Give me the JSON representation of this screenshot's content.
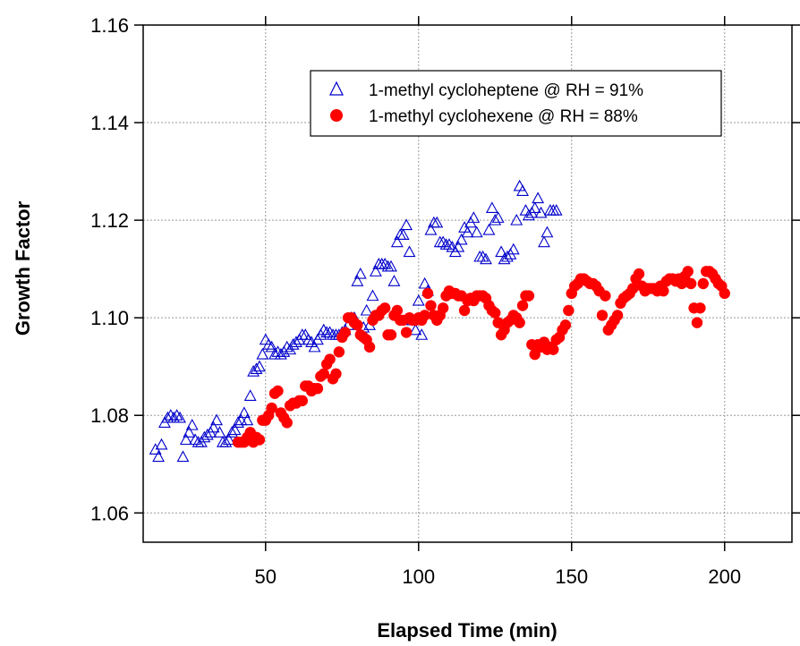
{
  "chart_data": {
    "type": "scatter",
    "xlabel": "Elapsed Time (min)",
    "ylabel": "Growth Factor",
    "xlim": [
      10,
      222
    ],
    "ylim": [
      1.054,
      1.16
    ],
    "xticks": [
      50,
      100,
      150,
      200
    ],
    "yticks": [
      1.06,
      1.08,
      1.1,
      1.12,
      1.14,
      1.16
    ],
    "ytick_labels": [
      "1.06",
      "1.08",
      "1.10",
      "1.12",
      "1.14",
      "1.16"
    ],
    "grid": true,
    "legend_position": "top-right",
    "series": [
      {
        "name": "1-methyl cycloheptene @ RH = 91%",
        "marker": "open-triangle",
        "color": "#0000cc",
        "points": [
          [
            14,
            1.073
          ],
          [
            15,
            1.0715
          ],
          [
            16,
            1.074
          ],
          [
            17,
            1.0785
          ],
          [
            18,
            1.0795
          ],
          [
            19,
            1.08
          ],
          [
            20,
            1.0795
          ],
          [
            21,
            1.08
          ],
          [
            22,
            1.0795
          ],
          [
            23,
            1.0715
          ],
          [
            24,
            1.075
          ],
          [
            25,
            1.0765
          ],
          [
            26,
            1.078
          ],
          [
            27,
            1.075
          ],
          [
            28,
            1.0745
          ],
          [
            29,
            1.0745
          ],
          [
            30,
            1.0755
          ],
          [
            31,
            1.076
          ],
          [
            32,
            1.0765
          ],
          [
            33,
            1.0775
          ],
          [
            34,
            1.079
          ],
          [
            35,
            1.0765
          ],
          [
            36,
            1.0745
          ],
          [
            37,
            1.0745
          ],
          [
            38,
            1.075
          ],
          [
            39,
            1.0765
          ],
          [
            40,
            1.077
          ],
          [
            41,
            1.0785
          ],
          [
            42,
            1.079
          ],
          [
            43,
            1.0805
          ],
          [
            44,
            1.079
          ],
          [
            45,
            1.084
          ],
          [
            46,
            1.089
          ],
          [
            47,
            1.0895
          ],
          [
            48,
            1.09
          ],
          [
            49,
            1.0925
          ],
          [
            50,
            1.0955
          ],
          [
            51,
            1.0945
          ],
          [
            52,
            1.094
          ],
          [
            53,
            1.0925
          ],
          [
            54,
            1.093
          ],
          [
            55,
            1.0925
          ],
          [
            56,
            1.093
          ],
          [
            57,
            1.094
          ],
          [
            58,
            1.0935
          ],
          [
            59,
            1.0945
          ],
          [
            60,
            1.095
          ],
          [
            61,
            1.0955
          ],
          [
            62,
            1.0965
          ],
          [
            63,
            1.0965
          ],
          [
            64,
            1.0955
          ],
          [
            65,
            1.095
          ],
          [
            66,
            1.094
          ],
          [
            67,
            1.0955
          ],
          [
            68,
            1.0965
          ],
          [
            69,
            1.0975
          ],
          [
            70,
            1.097
          ],
          [
            71,
            1.097
          ],
          [
            72,
            1.0965
          ],
          [
            73,
            1.0965
          ],
          [
            74,
            1.0965
          ],
          [
            75,
            1.097
          ],
          [
            76,
            1.0975
          ],
          [
            77,
            1.0985
          ],
          [
            78,
            1.1
          ],
          [
            79,
            1.1
          ],
          [
            80,
            1.1075
          ],
          [
            81,
            1.109
          ],
          [
            82,
            1.098
          ],
          [
            83,
            1.1015
          ],
          [
            84,
            1.0985
          ],
          [
            85,
            1.1045
          ],
          [
            86,
            1.1095
          ],
          [
            87,
            1.111
          ],
          [
            88,
            1.111
          ],
          [
            89,
            1.111
          ],
          [
            90,
            1.1105
          ],
          [
            91,
            1.1105
          ],
          [
            92,
            1.1075
          ],
          [
            93,
            1.1155
          ],
          [
            94,
            1.117
          ],
          [
            95,
            1.117
          ],
          [
            96,
            1.119
          ],
          [
            97,
            1.1135
          ],
          [
            98,
            1.0995
          ],
          [
            99,
            1.0975
          ],
          [
            100,
            1.1035
          ],
          [
            101,
            1.0965
          ],
          [
            102,
            1.107
          ],
          [
            103,
            1.1055
          ],
          [
            104,
            1.118
          ],
          [
            105,
            1.1195
          ],
          [
            106,
            1.1195
          ],
          [
            107,
            1.1155
          ],
          [
            108,
            1.1155
          ],
          [
            109,
            1.115
          ],
          [
            110,
            1.115
          ],
          [
            111,
            1.1145
          ],
          [
            112,
            1.1135
          ],
          [
            113,
            1.1145
          ],
          [
            114,
            1.116
          ],
          [
            115,
            1.1185
          ],
          [
            116,
            1.1175
          ],
          [
            117,
            1.1195
          ],
          [
            118,
            1.1205
          ],
          [
            119,
            1.1175
          ],
          [
            120,
            1.1125
          ],
          [
            121,
            1.1125
          ],
          [
            122,
            1.112
          ],
          [
            123,
            1.118
          ],
          [
            124,
            1.1225
          ],
          [
            125,
            1.12
          ],
          [
            126,
            1.1205
          ],
          [
            127,
            1.1135
          ],
          [
            128,
            1.112
          ],
          [
            129,
            1.1125
          ],
          [
            130,
            1.113
          ],
          [
            131,
            1.114
          ],
          [
            132,
            1.12
          ],
          [
            133,
            1.127
          ],
          [
            134,
            1.126
          ],
          [
            135,
            1.122
          ],
          [
            136,
            1.121
          ],
          [
            137,
            1.1215
          ],
          [
            138,
            1.1225
          ],
          [
            139,
            1.1245
          ],
          [
            140,
            1.1215
          ],
          [
            141,
            1.1155
          ],
          [
            142,
            1.1175
          ],
          [
            143,
            1.122
          ],
          [
            144,
            1.122
          ],
          [
            145,
            1.122
          ]
        ]
      },
      {
        "name": "1-methyl cyclohexene @ RH = 88%",
        "marker": "filled-circle",
        "color": "#ff0000",
        "points": [
          [
            41,
            1.0745
          ],
          [
            42,
            1.0745
          ],
          [
            43,
            1.0745
          ],
          [
            44,
            1.0755
          ],
          [
            45,
            1.0765
          ],
          [
            46,
            1.0745
          ],
          [
            47,
            1.0755
          ],
          [
            48,
            1.075
          ],
          [
            49,
            1.079
          ],
          [
            50,
            1.079
          ],
          [
            51,
            1.08
          ],
          [
            52,
            1.0815
          ],
          [
            53,
            1.0845
          ],
          [
            54,
            1.085
          ],
          [
            55,
            1.0805
          ],
          [
            56,
            1.0795
          ],
          [
            57,
            1.0785
          ],
          [
            58,
            1.082
          ],
          [
            59,
            1.0825
          ],
          [
            60,
            1.0825
          ],
          [
            61,
            1.083
          ],
          [
            62,
            1.083
          ],
          [
            63,
            1.086
          ],
          [
            64,
            1.086
          ],
          [
            65,
            1.085
          ],
          [
            66,
            1.0855
          ],
          [
            67,
            1.0855
          ],
          [
            68,
            1.088
          ],
          [
            69,
            1.0885
          ],
          [
            70,
            1.0905
          ],
          [
            71,
            1.0915
          ],
          [
            72,
            1.0875
          ],
          [
            73,
            1.0885
          ],
          [
            74,
            1.093
          ],
          [
            75,
            1.096
          ],
          [
            76,
            1.097
          ],
          [
            77,
            1.1
          ],
          [
            78,
            1.1
          ],
          [
            79,
            1.099
          ],
          [
            80,
            1.0985
          ],
          [
            81,
            1.0965
          ],
          [
            82,
            1.096
          ],
          [
            83,
            1.0955
          ],
          [
            84,
            1.094
          ],
          [
            85,
            1.0995
          ],
          [
            86,
            1.1005
          ],
          [
            87,
            1.1005
          ],
          [
            88,
            1.1015
          ],
          [
            89,
            1.102
          ],
          [
            90,
            1.0965
          ],
          [
            91,
            1.0965
          ],
          [
            92,
            1.1005
          ],
          [
            93,
            1.1015
          ],
          [
            94,
            1.0995
          ],
          [
            95,
            1.0995
          ],
          [
            96,
            1.097
          ],
          [
            97,
            1.1
          ],
          [
            98,
            1.0995
          ],
          [
            99,
            1.0995
          ],
          [
            100,
            1.1
          ],
          [
            101,
            1.0995
          ],
          [
            102,
            1.1005
          ],
          [
            103,
            1.105
          ],
          [
            104,
            1.1025
          ],
          [
            105,
            1.1005
          ],
          [
            106,
            1.0995
          ],
          [
            107,
            1.1005
          ],
          [
            108,
            1.102
          ],
          [
            109,
            1.1045
          ],
          [
            110,
            1.1055
          ],
          [
            111,
            1.105
          ],
          [
            112,
            1.105
          ],
          [
            113,
            1.1045
          ],
          [
            114,
            1.1045
          ],
          [
            115,
            1.1015
          ],
          [
            116,
            1.1035
          ],
          [
            117,
            1.104
          ],
          [
            118,
            1.1035
          ],
          [
            119,
            1.1045
          ],
          [
            120,
            1.1045
          ],
          [
            121,
            1.1045
          ],
          [
            122,
            1.104
          ],
          [
            123,
            1.1025
          ],
          [
            124,
            1.1015
          ],
          [
            125,
            1.101
          ],
          [
            126,
            1.099
          ],
          [
            127,
            1.0965
          ],
          [
            128,
            1.0975
          ],
          [
            129,
            1.099
          ],
          [
            130,
            1.0995
          ],
          [
            131,
            1.1005
          ],
          [
            132,
            1.1
          ],
          [
            133,
            1.099
          ],
          [
            134,
            1.1025
          ],
          [
            135,
            1.1045
          ],
          [
            136,
            1.1045
          ],
          [
            137,
            1.0945
          ],
          [
            138,
            1.0925
          ],
          [
            139,
            1.0945
          ],
          [
            140,
            1.094
          ],
          [
            141,
            1.095
          ],
          [
            142,
            1.0935
          ],
          [
            143,
            1.094
          ],
          [
            144,
            1.0935
          ],
          [
            145,
            1.0955
          ],
          [
            146,
            1.096
          ],
          [
            147,
            1.0975
          ],
          [
            148,
            1.0985
          ],
          [
            149,
            1.1015
          ],
          [
            150,
            1.105
          ],
          [
            151,
            1.1065
          ],
          [
            152,
            1.107
          ],
          [
            153,
            1.108
          ],
          [
            154,
            1.108
          ],
          [
            155,
            1.1075
          ],
          [
            156,
            1.107
          ],
          [
            157,
            1.107
          ],
          [
            158,
            1.1065
          ],
          [
            159,
            1.1055
          ],
          [
            160,
            1.1005
          ],
          [
            161,
            1.1045
          ],
          [
            162,
            1.0975
          ],
          [
            163,
            1.0985
          ],
          [
            164,
            1.0995
          ],
          [
            165,
            1.1005
          ],
          [
            166,
            1.103
          ],
          [
            167,
            1.104
          ],
          [
            168,
            1.1045
          ],
          [
            169,
            1.105
          ],
          [
            170,
            1.106
          ],
          [
            171,
            1.108
          ],
          [
            172,
            1.109
          ],
          [
            173,
            1.1065
          ],
          [
            174,
            1.1055
          ],
          [
            175,
            1.106
          ],
          [
            176,
            1.106
          ],
          [
            177,
            1.106
          ],
          [
            178,
            1.1055
          ],
          [
            179,
            1.1065
          ],
          [
            180,
            1.1055
          ],
          [
            181,
            1.1075
          ],
          [
            182,
            1.108
          ],
          [
            183,
            1.108
          ],
          [
            184,
            1.1075
          ],
          [
            185,
            1.108
          ],
          [
            186,
            1.107
          ],
          [
            187,
            1.1085
          ],
          [
            188,
            1.1095
          ],
          [
            189,
            1.107
          ],
          [
            190,
            1.102
          ],
          [
            191,
            1.099
          ],
          [
            192,
            1.102
          ],
          [
            193,
            1.107
          ],
          [
            194,
            1.1095
          ],
          [
            195,
            1.1095
          ],
          [
            196,
            1.109
          ],
          [
            197,
            1.108
          ],
          [
            198,
            1.107
          ],
          [
            199,
            1.1065
          ],
          [
            200,
            1.105
          ]
        ]
      }
    ]
  }
}
